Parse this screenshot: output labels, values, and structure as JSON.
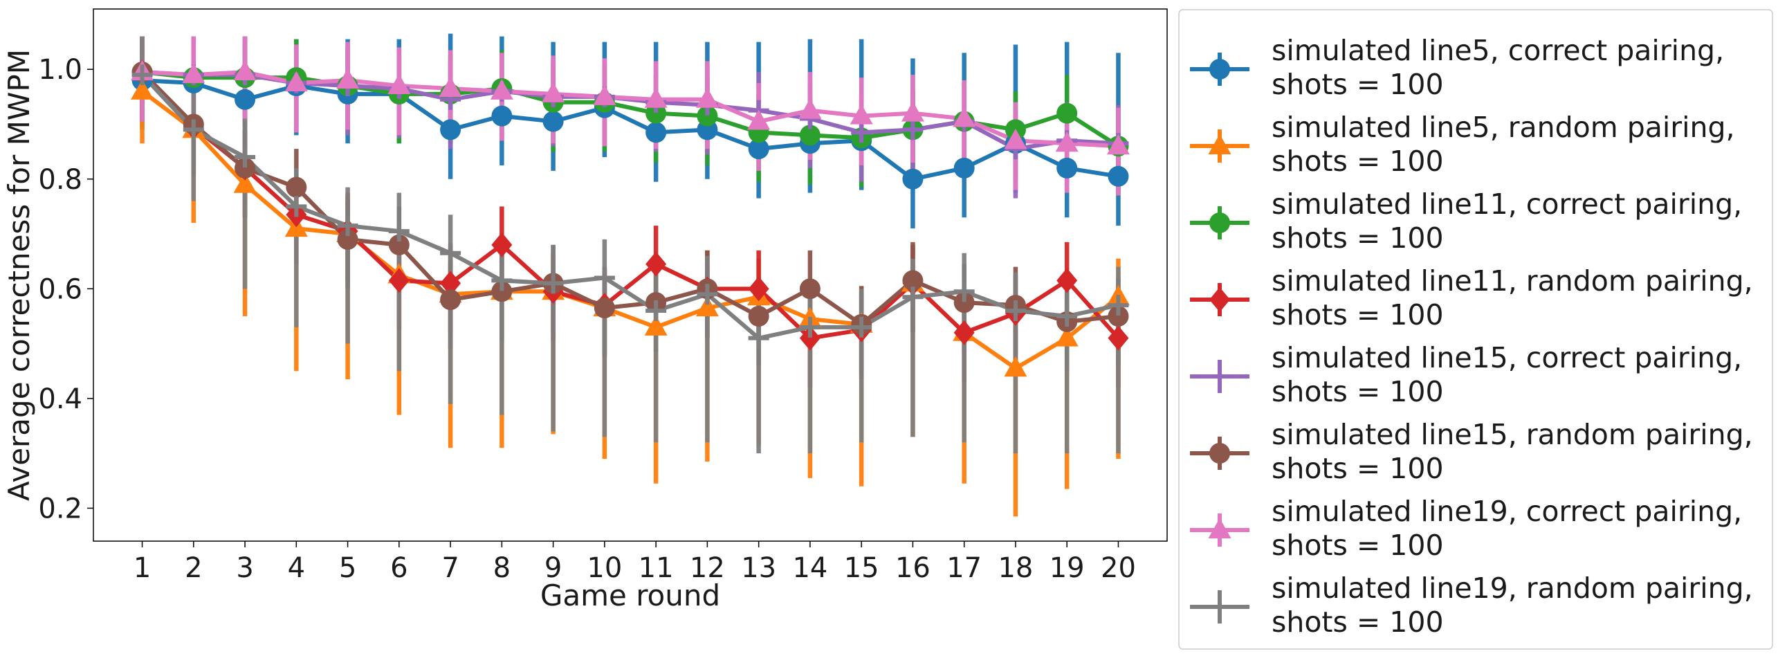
{
  "chart_data": {
    "type": "line",
    "title": "",
    "xlabel": "Game round",
    "ylabel": "Average correctness for MWPM",
    "x": [
      1,
      2,
      3,
      4,
      5,
      6,
      7,
      8,
      9,
      10,
      11,
      12,
      13,
      14,
      15,
      16,
      17,
      18,
      19,
      20
    ],
    "x_ticks": [
      "1",
      "2",
      "3",
      "4",
      "5",
      "6",
      "7",
      "8",
      "9",
      "10",
      "11",
      "12",
      "13",
      "14",
      "15",
      "16",
      "17",
      "18",
      "19",
      "20"
    ],
    "y_ticks": [
      "0.2",
      "0.4",
      "0.6",
      "0.8",
      "1.0"
    ],
    "y_tick_values": [
      0.2,
      0.4,
      0.6,
      0.8,
      1.0
    ],
    "xlim": [
      0.05,
      20.95
    ],
    "ylim": [
      0.14,
      1.11
    ],
    "grid": false,
    "legend_position": "outside-right",
    "series": [
      {
        "name_line1": "simulated line5, correct pairing,",
        "name_line2": "shots = 100",
        "color": "#1f77b4",
        "marker": "circle",
        "values": [
          0.98,
          0.975,
          0.945,
          0.97,
          0.955,
          0.955,
          0.89,
          0.915,
          0.905,
          0.93,
          0.885,
          0.89,
          0.855,
          0.865,
          0.87,
          0.8,
          0.82,
          0.865,
          0.82,
          0.805
        ],
        "err_high": [
          1.0,
          1.0,
          1.06,
          1.055,
          1.055,
          1.055,
          1.065,
          1.06,
          1.05,
          1.05,
          1.05,
          1.05,
          1.05,
          1.055,
          1.055,
          1.02,
          1.03,
          1.045,
          1.05,
          1.03
        ]
      },
      {
        "name_line1": "simulated line5, random pairing,",
        "name_line2": "shots = 100",
        "color": "#ff7f0e",
        "marker": "triangle-up",
        "values": [
          0.96,
          0.89,
          0.79,
          0.71,
          0.7,
          0.625,
          0.59,
          0.595,
          0.595,
          0.565,
          0.53,
          0.565,
          0.585,
          0.545,
          0.535,
          0.61,
          0.52,
          0.455,
          0.51,
          0.585
        ],
        "err_low": [
          0.865,
          0.72,
          0.55,
          0.45,
          0.435,
          0.37,
          0.31,
          0.31,
          0.335,
          0.29,
          0.245,
          0.285,
          0.315,
          0.255,
          0.24,
          0.33,
          0.245,
          0.185,
          0.235,
          0.29
        ]
      },
      {
        "name_line1": "simulated line11, correct pairing,",
        "name_line2": "shots = 100",
        "color": "#2ca02c",
        "marker": "circle",
        "values": [
          0.995,
          0.985,
          0.985,
          0.985,
          0.97,
          0.955,
          0.955,
          0.965,
          0.94,
          0.94,
          0.92,
          0.915,
          0.885,
          0.88,
          0.875,
          0.89,
          0.905,
          0.89,
          0.92,
          0.86
        ]
      },
      {
        "name_line1": "simulated line11, random pairing,",
        "name_line2": "shots = 100",
        "color": "#d62728",
        "marker": "diamond",
        "values": [
          0.995,
          0.895,
          0.82,
          0.735,
          0.705,
          0.615,
          0.61,
          0.68,
          0.595,
          0.57,
          0.645,
          0.6,
          0.6,
          0.51,
          0.525,
          0.61,
          0.52,
          0.555,
          0.615,
          0.51
        ]
      },
      {
        "name_line1": "simulated line15, correct pairing,",
        "name_line2": "shots = 100",
        "color": "#9467bd",
        "marker": "plus",
        "values": [
          0.995,
          0.99,
          0.99,
          0.975,
          0.97,
          0.965,
          0.945,
          0.96,
          0.95,
          0.95,
          0.94,
          0.935,
          0.925,
          0.91,
          0.885,
          0.89,
          0.905,
          0.855,
          0.87,
          0.865
        ]
      },
      {
        "name_line1": "simulated line15, random pairing,",
        "name_line2": "shots = 100",
        "color": "#8c564b",
        "marker": "circle",
        "values": [
          0.995,
          0.9,
          0.82,
          0.785,
          0.69,
          0.68,
          0.58,
          0.595,
          0.61,
          0.565,
          0.575,
          0.6,
          0.55,
          0.6,
          0.535,
          0.615,
          0.575,
          0.57,
          0.54,
          0.55
        ]
      },
      {
        "name_line1": "simulated line19, correct pairing,",
        "name_line2": "shots = 100",
        "color": "#e377c2",
        "marker": "triangle-up",
        "values": [
          0.995,
          0.99,
          0.995,
          0.975,
          0.98,
          0.97,
          0.965,
          0.96,
          0.955,
          0.95,
          0.945,
          0.945,
          0.905,
          0.925,
          0.915,
          0.92,
          0.91,
          0.87,
          0.865,
          0.86
        ]
      },
      {
        "name_line1": "simulated line19, random pairing,",
        "name_line2": "shots = 100",
        "color": "#7f7f7f",
        "marker": "plus",
        "values": [
          0.99,
          0.89,
          0.84,
          0.75,
          0.715,
          0.705,
          0.665,
          0.615,
          0.61,
          0.62,
          0.56,
          0.59,
          0.51,
          0.53,
          0.53,
          0.585,
          0.595,
          0.56,
          0.55,
          0.57
        ],
        "err_low": [
          0.995,
          0.76,
          0.6,
          0.53,
          0.5,
          0.45,
          0.39,
          0.37,
          0.34,
          0.33,
          0.32,
          0.32,
          0.3,
          0.3,
          0.32,
          0.33,
          0.32,
          0.3,
          0.3,
          0.3
        ]
      }
    ]
  }
}
